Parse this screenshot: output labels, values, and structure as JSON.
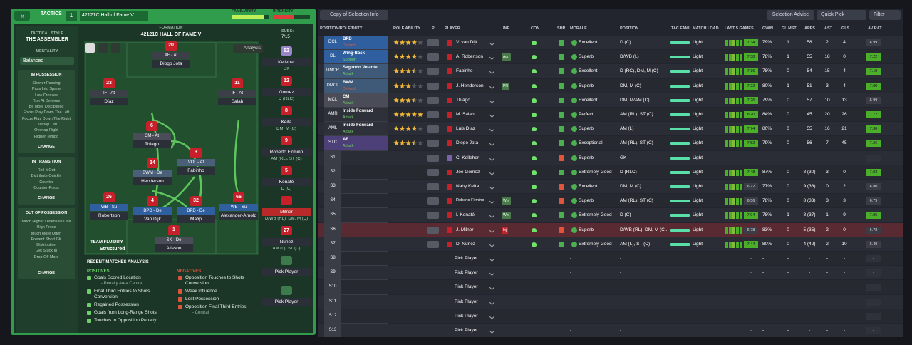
{
  "header": {
    "tactics": "TACTICS",
    "slot": "1",
    "tactic_name": "42121C Hall of Fame V",
    "familiarity": "FAMILIARITY",
    "intensity": "INTENSITY"
  },
  "sidebar": {
    "style_label": "TACTICAL STYLE",
    "style": "THE ASSEMBLER",
    "mentality_label": "MENTALITY",
    "mentality": "Balanced",
    "sections": [
      {
        "title": "IN POSSESSION",
        "items": [
          "Shorter Passing",
          "Pass Into Space",
          "Low Crosses",
          "Run At Defence",
          "Be More Disciplined",
          "Focus Play Down The Left",
          "Focus Play Down The Right",
          "Overlap Left",
          "Overlap Right",
          "Higher Tempo"
        ],
        "button": "CHANGE"
      },
      {
        "title": "IN TRANSITION",
        "items": [
          "Roll It Out",
          "Distribute Quickly",
          "Counter",
          "Counter-Press"
        ],
        "button": "CHANGE"
      },
      {
        "title": "OUT OF POSSESSION",
        "items": [
          "Much Higher Defensive Line",
          "High Press",
          "Much More Often",
          "Prevent Short GK Distribution",
          "Get Stuck In",
          "Drop Off More"
        ],
        "button": "CHANGE"
      }
    ]
  },
  "pitch": {
    "formation_label": "FORMATION",
    "formation": "42121C HALL OF FAME V",
    "subs_label": "SUBS:",
    "subs_count": "7/15",
    "analysis": "Analysis",
    "fluidity_label": "TEAM FLUIDITY",
    "fluidity": "Structured",
    "players": [
      {
        "number": "20",
        "role": "AF - At",
        "name": "Diogo Jota",
        "color": "#3c3f48"
      },
      {
        "number": "23",
        "role": "IF - At",
        "name": "Díaz",
        "color": "#3c3f48"
      },
      {
        "number": "11",
        "role": "IF - At",
        "name": "Salah",
        "color": "#3c3f48"
      },
      {
        "number": "6",
        "role": "CM - At",
        "name": "Thiago",
        "color": "#4a4d57"
      },
      {
        "number": "3",
        "role": "VOL - At",
        "name": "Fabinho",
        "color": "#4a5f78"
      },
      {
        "number": "14",
        "role": "BWM - De",
        "name": "Henderson",
        "color": "#4a5f78"
      },
      {
        "number": "26",
        "role": "WB - Su",
        "name": "Robertson",
        "color": "#2f5f9e"
      },
      {
        "number": "4",
        "role": "BPD - De",
        "name": "Van Dijk",
        "color": "#2f5f9e"
      },
      {
        "number": "32",
        "role": "BPD - De",
        "name": "Matip",
        "color": "#2f5f9e"
      },
      {
        "number": "66",
        "role": "WB - Su",
        "name": "Alexander-Arnold",
        "color": "#2f5f9e"
      },
      {
        "number": "1",
        "role": "SK - De",
        "name": "Alisson",
        "color": "#4a4d57"
      }
    ]
  },
  "subs": [
    {
      "number": "62",
      "name": "Kelleher",
      "position": "GK"
    },
    {
      "number": "12",
      "name": "Gomez",
      "position": "D (RLC)"
    },
    {
      "number": "8",
      "name": "Keita",
      "position": "DM, M (C)"
    },
    {
      "number": "9",
      "name": "Roberto Firmino",
      "position": "AM (RL), ST (C)"
    },
    {
      "number": "5",
      "name": "Konaté",
      "position": "D (C)"
    },
    {
      "name": "Milner",
      "position": "D/WB (RL), DM, M (C)"
    },
    {
      "number": "27",
      "name": "Núñez",
      "position": "AM (L), ST (C)"
    },
    {
      "name": "Pick Player"
    },
    {
      "name": "Pick Player"
    }
  ],
  "analysis": {
    "title": "RECENT MATCHES ANALYSIS",
    "positives_label": "POSITIVES",
    "negatives_label": "NEGATIVES",
    "positives": [
      {
        "text": "Goals Scored Location",
        "note": "- Penalty Area Centre"
      },
      {
        "text": "Final Third Entries to Shots Conversion"
      },
      {
        "text": "Regained Possession"
      },
      {
        "text": "Goals from Long-Range Shots"
      },
      {
        "text": "Touches in Opposition Penalty"
      }
    ],
    "negatives": [
      {
        "text": "Opposition Touches to Shots Conversion"
      },
      {
        "text": "Weak Influence"
      },
      {
        "text": "Lost Possession"
      },
      {
        "text": "Opposition Final Third Entries",
        "note": "- Central"
      }
    ]
  },
  "toolbar": {
    "view": "Copy of Selection Info",
    "advice": "Selection Advice",
    "quick_pick": "Quick Pick",
    "filter": "Filter"
  },
  "table": {
    "headers": [
      "POSITION/ROLE/DUTY",
      "ROLE ABILITY",
      "PI",
      "PLAYER",
      "INF",
      "CON",
      "SHP",
      "MORALE",
      "POSITION",
      "TAC FAMI",
      "MATCH LOAD",
      "LAST 5 GAMES",
      "GWIN",
      "GL MST",
      "APPS",
      "AST",
      "GLS",
      "AV RAT"
    ],
    "rows": [
      {
        "pos": "DCL",
        "role": "BPD",
        "duty": "Defend",
        "color": "#2f5f9e",
        "ability": 4,
        "player": "V. van Dijk",
        "morale": "Excellent",
        "position": "D (C)",
        "load": "Light",
        "rating": "7.34",
        "gwin": "79%",
        "glmst": "1",
        "apps": "58",
        "ast": "2",
        "gls": "4",
        "avrat": "6.99"
      },
      {
        "pos": "DL",
        "role": "Wing-Back",
        "duty": "Support",
        "color": "#2f5f9e",
        "ability": 4,
        "player": "A. Robertson",
        "inf": "Agn",
        "morale": "Superb",
        "position": "D/WB (L)",
        "load": "Light",
        "rating": "7.38",
        "gwin": "78%",
        "glmst": "1",
        "apps": "55",
        "ast": "18",
        "gls": "0",
        "avrat": "7.22"
      },
      {
        "pos": "DMCR",
        "role": "Segundo Volante",
        "duty": "Attack",
        "color": "#3f5a78",
        "ability": 3.5,
        "player": "Fabinho",
        "morale": "Excellent",
        "position": "D (RC), DM, M (C)",
        "load": "Light",
        "rating": "7.36",
        "gwin": "78%",
        "glmst": "0",
        "apps": "54",
        "ast": "15",
        "gls": "4",
        "avrat": "7.19"
      },
      {
        "pos": "DMCL",
        "role": "BWM",
        "duty": "Defend",
        "color": "#3f5a78",
        "ability": 3,
        "player": "J. Henderson",
        "inf": "PR",
        "morale": "Superb",
        "position": "DM, M (C)",
        "load": "Light",
        "rating": "7.22",
        "gwin": "80%",
        "glmst": "1",
        "apps": "51",
        "ast": "3",
        "gls": "4",
        "avrat": "7.00"
      },
      {
        "pos": "MCL",
        "role": "CM",
        "duty": "Attack",
        "color": "#4a4d57",
        "ability": 3.5,
        "player": "Thiago",
        "morale": "Excellent",
        "position": "DM, M/AM (C)",
        "load": "Light",
        "rating": "7.26",
        "gwin": "79%",
        "glmst": "0",
        "apps": "57",
        "ast": "10",
        "gls": "13",
        "avrat": "6.99"
      },
      {
        "pos": "AMR",
        "role": "Inside Forward",
        "duty": "Attack",
        "color": "#2e313a",
        "ability": 5,
        "player": "M. Salah",
        "morale": "Perfect",
        "position": "AM (RL), ST (C)",
        "load": "Light",
        "rating": "8.20",
        "gwin": "84%",
        "glmst": "0",
        "apps": "45",
        "ast": "20",
        "gls": "26",
        "avrat": "7.72"
      },
      {
        "pos": "AML",
        "role": "Inside Forward",
        "duty": "Attack",
        "color": "#2e313a",
        "ability": 4,
        "player": "Luis Díaz",
        "morale": "Superb",
        "position": "AM (L)",
        "load": "Light",
        "rating": "7.74",
        "gwin": "80%",
        "glmst": "0",
        "apps": "55",
        "ast": "16",
        "gls": "21",
        "avrat": "7.30"
      },
      {
        "pos": "STC",
        "role": "AF",
        "duty": "Attack",
        "color": "#4d3f78",
        "ability": 3.5,
        "player": "Diogo Jota",
        "morale": "Exceptional",
        "position": "AM (RL), ST (C)",
        "load": "Light",
        "rating": "7.52",
        "gwin": "79%",
        "glmst": "0",
        "apps": "56",
        "ast": "7",
        "gls": "45",
        "avrat": "7.26"
      },
      {
        "pos": "S1",
        "player": "C. Kelleher",
        "shirt": "#7b62a8",
        "morale": "Superb",
        "position": "GK",
        "load": "Light",
        "rating": "-",
        "gwin": "-",
        "glmst": "-",
        "apps": "-",
        "ast": "-",
        "gls": "-",
        "avrat": "-"
      },
      {
        "pos": "S2",
        "player": "Joe Gomez",
        "morale": "Extremely Good",
        "position": "D (RLC)",
        "load": "Light",
        "rating": "7.48",
        "gwin": "87%",
        "glmst": "0",
        "apps": "8 (30)",
        "ast": "3",
        "gls": "0",
        "avrat": "7.03"
      },
      {
        "pos": "S3",
        "player": "Naby Keïta",
        "morale": "Excellent",
        "position": "DM, M (C)",
        "load": "Light",
        "rating": "6.72",
        "gwin": "77%",
        "glmst": "0",
        "apps": "9 (38)",
        "ast": "0",
        "gls": "2",
        "avrat": "6.80"
      },
      {
        "pos": "S4",
        "player": "Roberto Firmino",
        "inf": "Wnt",
        "morale": "Superb",
        "position": "AM (RL), ST (C)",
        "load": "Light",
        "rating": "6.56",
        "gwin": "78%",
        "glmst": "0",
        "apps": "8 (33)",
        "ast": "3",
        "gls": "3",
        "avrat": "6.79"
      },
      {
        "pos": "S5",
        "player": "I. Konaté",
        "inf": "Wnt",
        "morale": "Extremely Good",
        "position": "D (C)",
        "load": "Light",
        "rating": "7.04",
        "gwin": "78%",
        "glmst": "1",
        "apps": "8 (37)",
        "ast": "1",
        "gls": "9",
        "avrat": "7.05"
      },
      {
        "pos": "S6",
        "player": "J. Milner",
        "inf": "Inj",
        "selected": true,
        "morale": "Superb",
        "position": "D/WB (RL), DM, M (C...",
        "load": "Light",
        "rating": "6.78",
        "gwin": "83%",
        "glmst": "0",
        "apps": "5 (35)",
        "ast": "2",
        "gls": "0",
        "avrat": "6.78"
      },
      {
        "pos": "S7",
        "player": "D. Núñez",
        "morale": "Extremely Good",
        "position": "AM (L), ST (C)",
        "load": "Light",
        "rating": "7.44",
        "gwin": "80%",
        "glmst": "0",
        "apps": "4 (42)",
        "ast": "2",
        "gls": "10",
        "avrat": "6.49"
      },
      {
        "pos": "S8",
        "player": "Pick Player",
        "morale": "-",
        "position": "-",
        "rating": "-",
        "gwin": "-",
        "glmst": "-",
        "apps": "-",
        "ast": "-",
        "gls": "-",
        "avrat": "-"
      },
      {
        "pos": "S9",
        "player": "Pick Player",
        "morale": "-",
        "position": "-",
        "rating": "-",
        "gwin": "-",
        "glmst": "-",
        "apps": "-",
        "ast": "-",
        "gls": "-",
        "avrat": "-"
      },
      {
        "pos": "S10",
        "player": "Pick Player",
        "morale": "-",
        "position": "-",
        "rating": "-",
        "gwin": "-",
        "glmst": "-",
        "apps": "-",
        "ast": "-",
        "gls": "-",
        "avrat": "-"
      },
      {
        "pos": "S11",
        "player": "Pick Player",
        "morale": "-",
        "position": "-",
        "rating": "-",
        "gwin": "-",
        "glmst": "-",
        "apps": "-",
        "ast": "-",
        "gls": "-",
        "avrat": "-"
      },
      {
        "pos": "S12",
        "player": "Pick Player",
        "morale": "-",
        "position": "-",
        "rating": "-",
        "gwin": "-",
        "glmst": "-",
        "apps": "-",
        "ast": "-",
        "gls": "-",
        "avrat": "-"
      },
      {
        "pos": "S13",
        "player": "Pick Player",
        "morale": "-",
        "position": "-",
        "rating": "-",
        "gwin": "-",
        "glmst": "-",
        "apps": "-",
        "ast": "-",
        "gls": "-",
        "avrat": "-"
      }
    ]
  }
}
